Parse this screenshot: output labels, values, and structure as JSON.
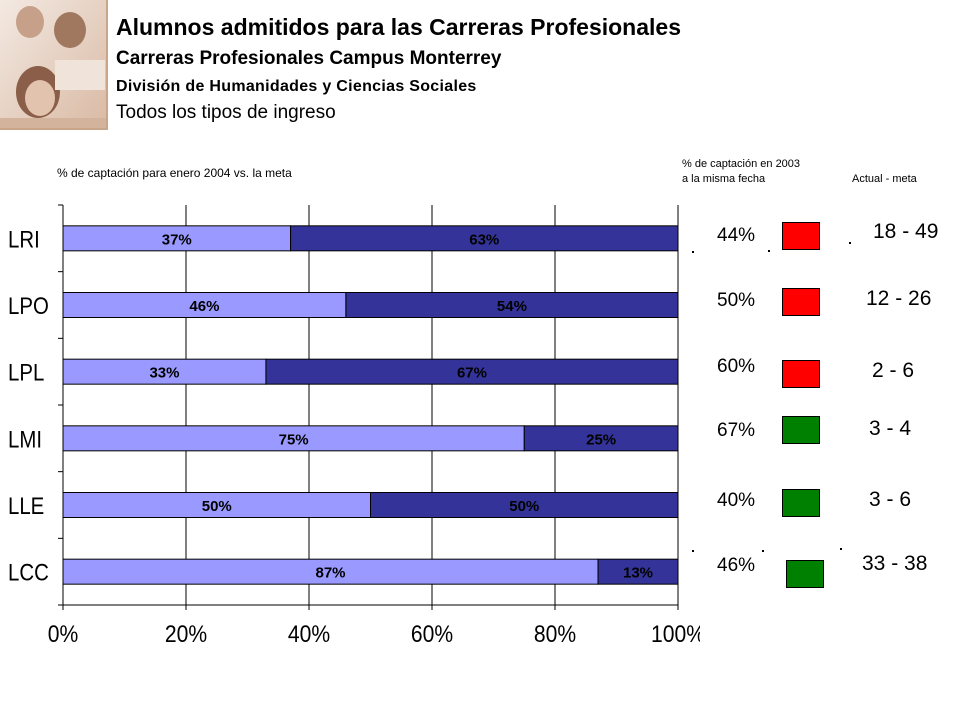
{
  "header": {
    "title": "Alumnos admitidos para las Carreras Profesionales",
    "subtitle": "Carreras Profesionales Campus Monterrey",
    "division": "División de Humanidades y Ciencias Sociales",
    "ingreso": "Todos los tipos de ingreso"
  },
  "labels": {
    "chart_caption": "% de captación para enero 2004 vs. la meta",
    "prev_caption_line1": "% de captación en 2003",
    "prev_caption_line2": "a la misma fecha",
    "range_caption": "Actual -  meta"
  },
  "colors": {
    "achieved": "#9999ff",
    "remaining": "#333399",
    "red": "#ff0000",
    "green": "#008000",
    "photo_border": "#c9a58a"
  },
  "chart_data": {
    "type": "bar",
    "orientation": "horizontal",
    "stacked": true,
    "categories": [
      "LRI",
      "LPO",
      "LPL",
      "LMI",
      "LLE",
      "LCC"
    ],
    "series": [
      {
        "values": [
          37,
          46,
          33,
          75,
          50,
          87
        ],
        "labels": [
          "37%",
          "46%",
          "33%",
          "75%",
          "50%",
          "87%"
        ]
      },
      {
        "values": [
          63,
          54,
          67,
          25,
          50,
          13
        ],
        "labels": [
          "63%",
          "54%",
          "67%",
          "25%",
          "50%",
          "13%"
        ]
      }
    ],
    "xlim": [
      0,
      100
    ],
    "xticks": [
      "0%",
      "20%",
      "40%",
      "60%",
      "80%",
      "100%"
    ],
    "grid": true
  },
  "rows": [
    {
      "prev": "44%",
      "status": "red",
      "range": "18 - 49"
    },
    {
      "prev": "50%",
      "status": "red",
      "range": "12 - 26"
    },
    {
      "prev": "60%",
      "status": "red",
      "range": "2 - 6"
    },
    {
      "prev": "67%",
      "status": "green",
      "range": "3 - 4"
    },
    {
      "prev": "40%",
      "status": "green",
      "range": "3 - 6"
    },
    {
      "prev": "46%",
      "status": "green",
      "range": "33 - 38"
    }
  ]
}
